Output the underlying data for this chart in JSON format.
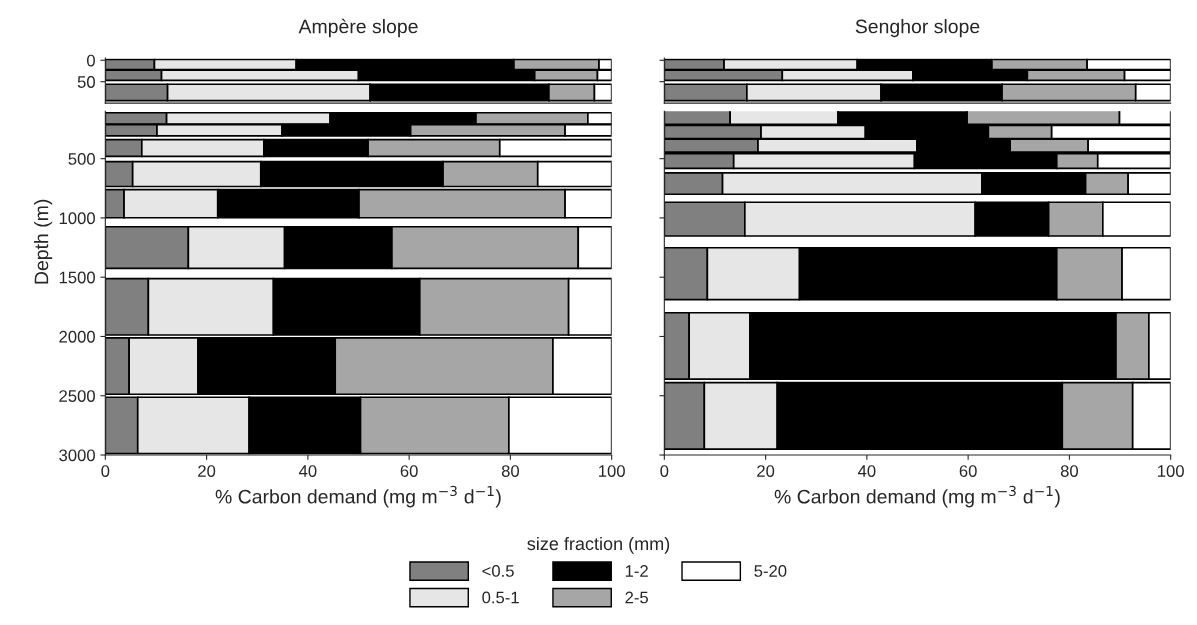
{
  "chart_data": [
    {
      "type": "bar",
      "orientation": "horizontal",
      "stacked": true,
      "title": "Ampère slope",
      "x": [
        10,
        35,
        75
      ],
      "xlim": [
        0,
        100
      ],
      "ylim": [
        100,
        -5
      ],
      "yticks": [
        0,
        50
      ],
      "tick_labels": "y",
      "grid": false,
      "series": [
        {
          "color": "#808080",
          "values": [
            9.7,
            11.1,
            12.3
          ]
        },
        {
          "color": "#e6e6e6",
          "values": [
            28.0,
            38.9,
            40.0
          ]
        },
        {
          "color": "#000000",
          "values": [
            43.0,
            34.8,
            35.3
          ]
        },
        {
          "color": "#a6a6a6",
          "values": [
            16.8,
            12.4,
            9.0
          ]
        },
        {
          "color": "#ffffff",
          "values": [
            2.5,
            2.8,
            3.4
          ]
        }
      ]
    },
    {
      "type": "bar",
      "orientation": "horizontal",
      "stacked": true,
      "xlabel": "% Carbon demand (mg m$^{−3}$ d$^{−1}$)",
      "ylabel": "Depth (m)",
      "legend_title": "size fraction (mm)",
      "legend": "bottom",
      "x": [
        160,
        260,
        410,
        630,
        880,
        1250,
        1750,
        2250,
        2750
      ],
      "xlim": [
        0,
        100
      ],
      "xticks": [
        0,
        20,
        40,
        60,
        80,
        100
      ],
      "ylim": [
        3000,
        100
      ],
      "yticks": [
        500,
        1000,
        1500,
        2000,
        2500,
        3000
      ],
      "grid": false,
      "series": [
        {
          "name": "<0.5",
          "color": "#808080",
          "values": [
            12.1,
            10.2,
            7.2,
            5.4,
            3.7,
            16.4,
            8.5,
            4.7,
            6.4
          ]
        },
        {
          "name": "0.5-1",
          "color": "#e6e6e6",
          "values": [
            32.3,
            24.7,
            24.1,
            25.3,
            18.5,
            19.0,
            24.7,
            13.6,
            22.0
          ]
        },
        {
          "name": "1-2",
          "color": "#000000",
          "values": [
            28.8,
            25.4,
            20.6,
            36.0,
            27.9,
            21.2,
            28.9,
            27.1,
            22.0
          ]
        },
        {
          "name": "2-5",
          "color": "#a6a6a6",
          "values": [
            22.1,
            30.5,
            26.0,
            18.7,
            40.7,
            36.8,
            29.4,
            43.0,
            29.3
          ]
        },
        {
          "name": "5-20",
          "color": "#ffffff",
          "values": [
            4.7,
            9.2,
            22.1,
            14.6,
            9.2,
            6.6,
            8.5,
            11.6,
            20.3
          ]
        }
      ]
    },
    {
      "type": "bar",
      "orientation": "horizontal",
      "stacked": true,
      "title": "Senghor slope",
      "x": [
        10,
        35,
        75
      ],
      "xlim": [
        0,
        100
      ],
      "ylim": [
        100,
        -5
      ],
      "yticks": [
        {
          "value": 0,
          "label": null
        },
        {
          "value": 50,
          "label": null
        }
      ],
      "tick_labels": false,
      "grid": false,
      "series": [
        {
          "color": "#808080",
          "values": [
            11.8,
            23.3,
            16.3
          ]
        },
        {
          "color": "#e6e6e6",
          "values": [
            26.3,
            25.8,
            26.5
          ]
        },
        {
          "color": "#000000",
          "values": [
            26.6,
            22.6,
            23.9
          ]
        },
        {
          "color": "#a6a6a6",
          "values": [
            18.8,
            19.2,
            26.4
          ]
        },
        {
          "color": "#ffffff",
          "values": [
            16.5,
            9.1,
            6.9
          ]
        }
      ]
    },
    {
      "type": "bar",
      "orientation": "horizontal",
      "stacked": true,
      "xlabel": "% Carbon demand (mg m$^{−3}$ d$^{−1}$)",
      "x": [
        150,
        275,
        390,
        520,
        710,
        1010,
        1470,
        2080,
        2670
      ],
      "xlim": [
        0,
        100
      ],
      "xticks": [
        0,
        20,
        40,
        60,
        80,
        100
      ],
      "ylim": [
        3000,
        100
      ],
      "yticks": [
        {
          "value": 500,
          "label": null
        },
        {
          "value": 1000,
          "label": null
        },
        {
          "value": 1500,
          "label": null
        },
        {
          "value": 2000,
          "label": null
        },
        {
          "value": 2500,
          "label": null
        },
        {
          "value": 3000,
          "label": null
        }
      ],
      "tick_labels": "x",
      "grid": false,
      "series": [
        {
          "color": "#808080",
          "values": [
            13.0,
            19.1,
            18.5,
            13.7,
            11.5,
            15.9,
            8.5,
            4.9,
            7.9
          ]
        },
        {
          "color": "#e6e6e6",
          "values": [
            21.3,
            20.6,
            31.4,
            35.7,
            51.2,
            45.5,
            18.2,
            12.0,
            14.4
          ]
        },
        {
          "color": "#000000",
          "values": [
            25.5,
            24.3,
            18.4,
            28.1,
            20.5,
            14.5,
            50.8,
            72.3,
            56.3
          ]
        },
        {
          "color": "#a6a6a6",
          "values": [
            30.1,
            12.5,
            15.4,
            8.1,
            8.4,
            10.7,
            12.9,
            6.5,
            13.9
          ]
        },
        {
          "color": "#ffffff",
          "values": [
            10.1,
            23.5,
            16.3,
            14.4,
            8.4,
            13.4,
            9.6,
            4.3,
            7.5
          ]
        }
      ]
    }
  ]
}
